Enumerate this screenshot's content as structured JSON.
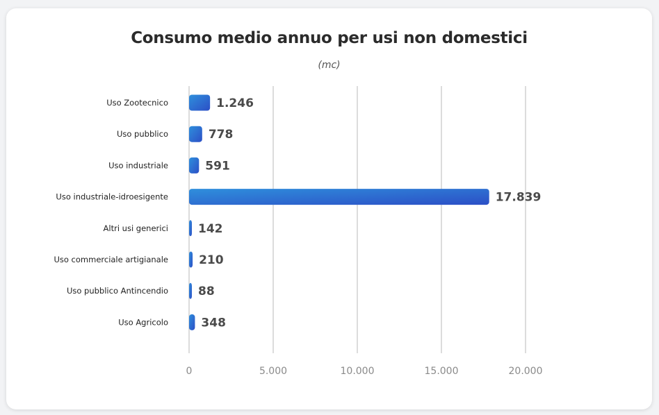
{
  "colors": {
    "bar_start": "#2f8fdc",
    "bar_end": "#2c4fc6",
    "grid": "#b8b8b8",
    "card": "#ffffff"
  },
  "chart_data": {
    "type": "bar",
    "orientation": "horizontal",
    "title": "Consumo medio annuo per usi non domestici",
    "subtitle": "(mc)",
    "categories": [
      "Uso Zootecnico",
      "Uso pubblico",
      "Uso industriale",
      "Uso industriale-idroesigente",
      "Altri usi generici",
      "Uso commerciale artigianale",
      "Uso pubblico Antincendio",
      "Uso Agricolo"
    ],
    "values": [
      1246,
      778,
      591,
      17839,
      142,
      210,
      88,
      348
    ],
    "value_labels": [
      "1.246",
      "778",
      "591",
      "17.839",
      "142",
      "210",
      "88",
      "348"
    ],
    "xlim": [
      0,
      20000
    ],
    "xticks": [
      0,
      5000,
      10000,
      15000,
      20000
    ],
    "xtick_labels": [
      "0",
      "5.000",
      "10.000",
      "15.000",
      "20.000"
    ],
    "grid": true,
    "legend": "none"
  }
}
